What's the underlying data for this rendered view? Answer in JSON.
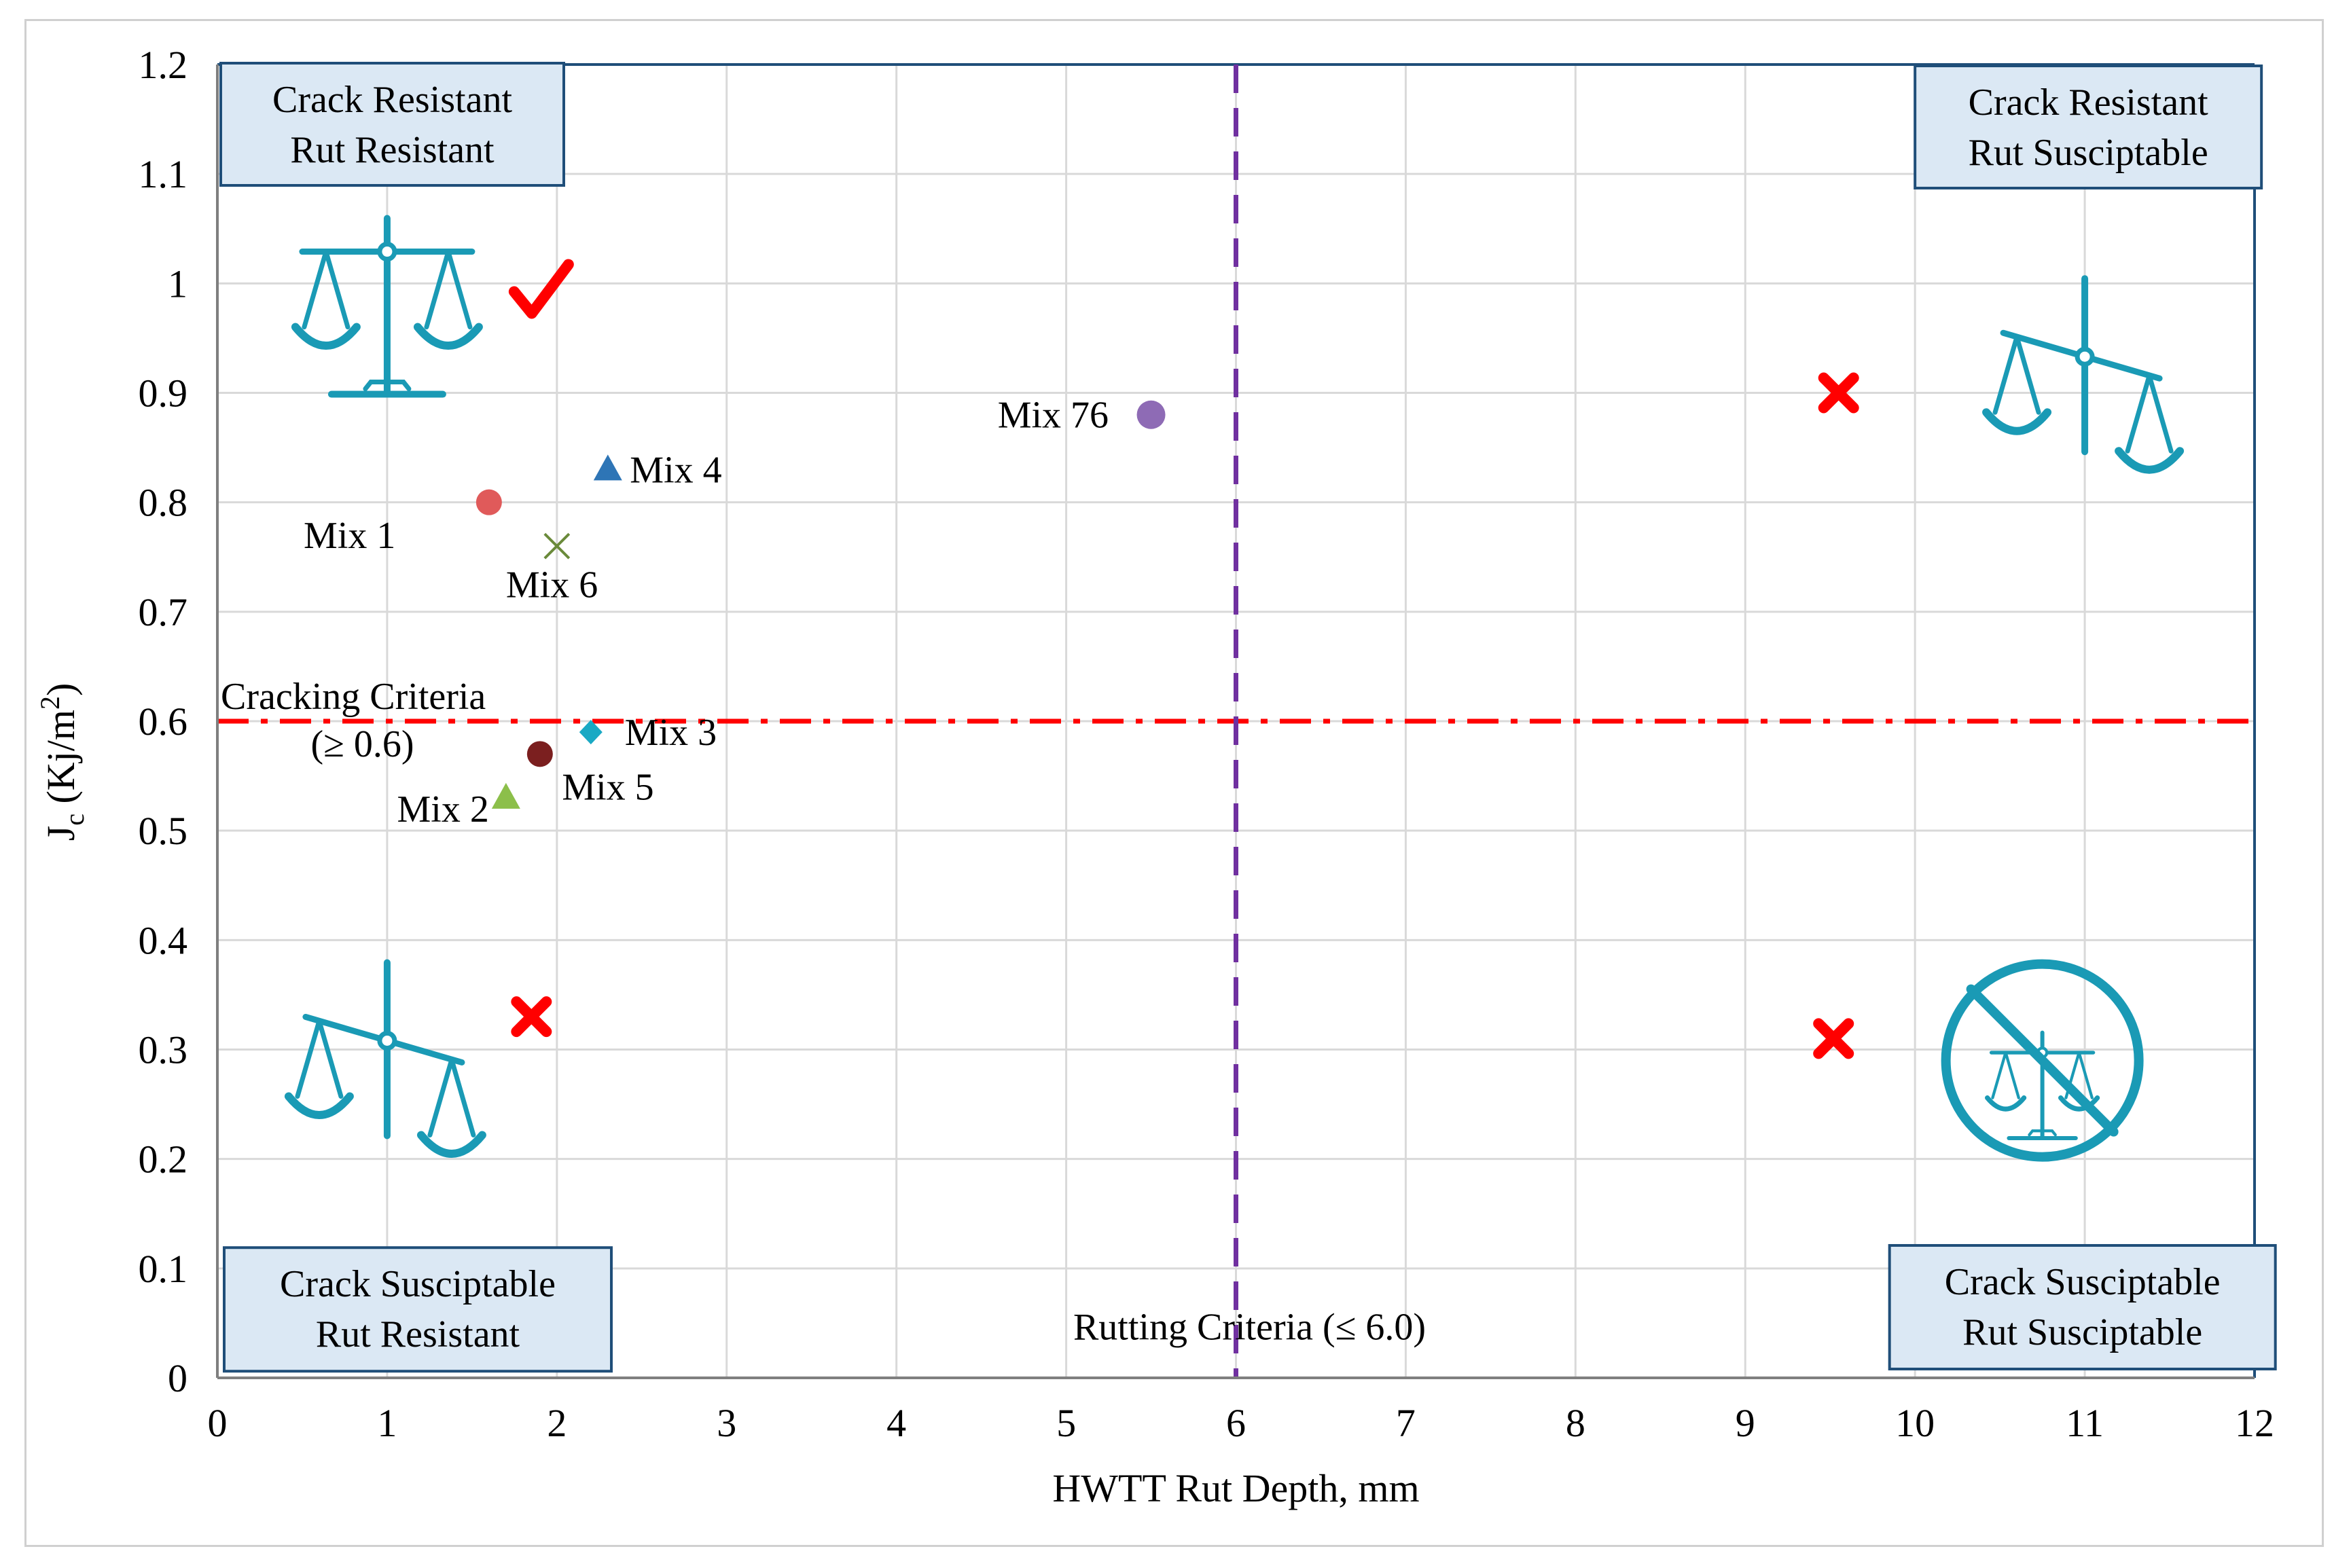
{
  "chart_data": {
    "type": "scatter",
    "title": "",
    "xlabel": "HWTT Rut Depth, mm",
    "ylabel_main": "J",
    "ylabel_sub": "c",
    "ylabel_unit": " (Kj/m",
    "ylabel_sup": "2",
    "ylabel_close": ")",
    "xlim": [
      0,
      12
    ],
    "ylim": [
      0,
      1.2
    ],
    "xticks": [
      0,
      1,
      2,
      3,
      4,
      5,
      6,
      7,
      8,
      9,
      10,
      11,
      12
    ],
    "xtick_labels": [
      "0",
      "1",
      "2",
      "3",
      "4",
      "5",
      "6",
      "7",
      "8",
      "9",
      "10",
      "11",
      "12"
    ],
    "yticks": [
      0,
      0.1,
      0.2,
      0.3,
      0.4,
      0.5,
      0.6,
      0.7,
      0.8,
      0.9,
      1.0,
      1.1,
      1.2
    ],
    "ytick_labels": [
      "0",
      "0.1",
      "0.2",
      "0.3",
      "0.4",
      "0.5",
      "0.6",
      "0.7",
      "0.8",
      "0.9",
      "1",
      "1.1",
      "1.2"
    ],
    "grid": true,
    "series": [
      {
        "name": "Mix 1",
        "x": 1.6,
        "y": 0.8,
        "marker": "circle",
        "color": "#e05a5a",
        "label_dx": -0.55,
        "label_dy": -0.03,
        "anchor": "end"
      },
      {
        "name": "Mix 2",
        "x": 1.7,
        "y": 0.53,
        "marker": "triangle",
        "color": "#8cbf4a",
        "label_dx": -0.1,
        "label_dy": -0.01,
        "anchor": "end"
      },
      {
        "name": "Mix 3",
        "x": 2.2,
        "y": 0.59,
        "marker": "diamond",
        "color": "#1aa9c4",
        "label_dx": 0.2,
        "label_dy": 0.0,
        "anchor": "start"
      },
      {
        "name": "Mix 4",
        "x": 2.3,
        "y": 0.83,
        "marker": "triangle",
        "color": "#2e75b6",
        "label_dx": 0.13,
        "label_dy": 0.0,
        "anchor": "start"
      },
      {
        "name": "Mix 5",
        "x": 1.9,
        "y": 0.57,
        "marker": "circle",
        "color": "#7b1f1f",
        "label_dx": 0.13,
        "label_dy": -0.03,
        "anchor": "start"
      },
      {
        "name": "Mix 6",
        "x": 2.0,
        "y": 0.76,
        "marker": "x",
        "color": "#6a8a3a",
        "label_dx": -0.3,
        "label_dy": -0.035,
        "anchor": "start"
      },
      {
        "name": "Mix 76",
        "x": 5.5,
        "y": 0.88,
        "marker": "circle",
        "color": "#8e6bb5",
        "label_dx": -0.25,
        "label_dy": 0.0,
        "anchor": "end"
      }
    ],
    "criteria": {
      "cracking": {
        "y": 0.6,
        "label_line1": "Cracking Criteria",
        "label_line2": "(≥ 0.6)",
        "color": "#ff0000"
      },
      "rutting": {
        "x": 6.0,
        "label": "Rutting Criteria (≤ 6.0)",
        "color": "#7030a0"
      }
    },
    "quadrant_boxes": [
      {
        "id": "top-left",
        "line1": "Crack Resistant",
        "line2": "Rut Resistant"
      },
      {
        "id": "top-right",
        "line1": "Crack Resistant",
        "line2": "Rut Susciptable"
      },
      {
        "id": "bottom-left",
        "line1": "Crack Susciptable",
        "line2": "Rut Resistant"
      },
      {
        "id": "bottom-right",
        "line1": "Crack Susciptable",
        "line2": "Rut Susciptable"
      }
    ],
    "quadrant_icons": [
      {
        "id": "top-left",
        "icon": "balanced-scale-icon",
        "verdict": "check-mark-icon"
      },
      {
        "id": "top-right",
        "icon": "tilted-scale-icon",
        "verdict": "cross-mark-icon"
      },
      {
        "id": "bottom-left",
        "icon": "tilted-scale-icon",
        "verdict": "cross-mark-icon"
      },
      {
        "id": "bottom-right",
        "icon": "prohibited-scale-icon",
        "verdict": "cross-mark-icon"
      }
    ],
    "colors": {
      "axis": "#7f7f7f",
      "grid": "#d9d9d9",
      "plot_border": "#1f4e79",
      "box_fill": "#dbe8f4",
      "box_border": "#1f4e79",
      "icon": "#1a9ab5",
      "verdict_mark": "#ff0000"
    }
  }
}
